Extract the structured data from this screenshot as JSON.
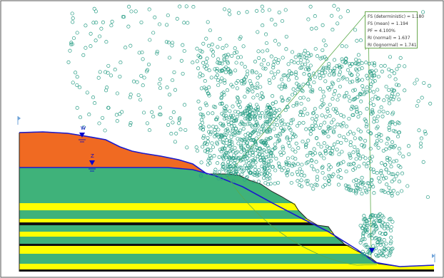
{
  "colors": {
    "background": "#ffffff",
    "orange_layer": "#f06a22",
    "green_layer": "#3fb27a",
    "yellow_layer": "#ffff00",
    "black_layer": "#111111",
    "water_line": "#1a1acc",
    "slip_points": "#2a9e86",
    "slip_surface": "#5caa4a",
    "marker": "#0000cc"
  },
  "water_table_labels": {
    "upper": "W",
    "lower": "Z"
  },
  "results": [
    "FS (deterministic) = 1.180",
    "FS (mean) = 1.194",
    "PF = 4.100%",
    "RI (normal) = 1.637",
    "RI (lognormal) = 1.741"
  ],
  "icons": [
    "water-table-triangle-icon",
    "boundary-marker-icon"
  ]
}
